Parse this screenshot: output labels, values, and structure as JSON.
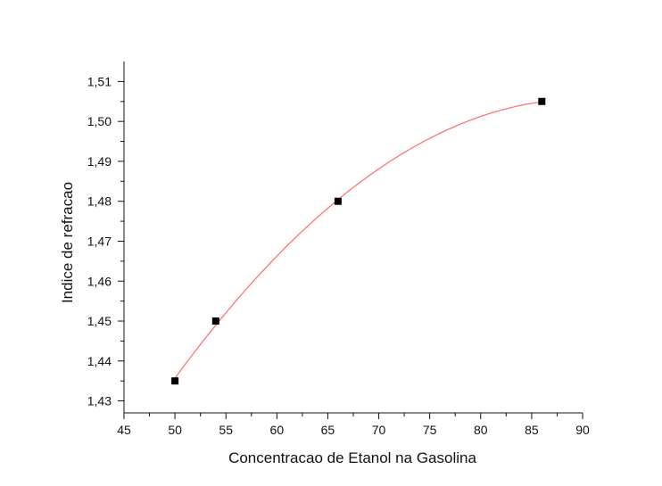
{
  "chart_data": {
    "type": "scatter",
    "title": "",
    "xlabel": "Concentracao de Etanol na Gasolina",
    "ylabel": "Indice de refracao",
    "xlim": [
      45,
      90
    ],
    "ylim": [
      1.427,
      1.515
    ],
    "xticks": [
      45,
      50,
      55,
      60,
      65,
      70,
      75,
      80,
      85,
      90
    ],
    "xtick_labels": [
      "45",
      "50",
      "55",
      "60",
      "65",
      "70",
      "75",
      "80",
      "85",
      "90"
    ],
    "yticks": [
      1.43,
      1.44,
      1.45,
      1.46,
      1.47,
      1.48,
      1.49,
      1.5,
      1.51
    ],
    "ytick_labels": [
      "1,43",
      "1,44",
      "1,45",
      "1,46",
      "1,47",
      "1,48",
      "1,49",
      "1,50",
      "1,51"
    ],
    "grid": false,
    "legend": "none",
    "series": [
      {
        "marker": "square",
        "color": "#000000",
        "x": [
          50,
          54,
          66,
          86
        ],
        "y": [
          1.435,
          1.45,
          1.48,
          1.505
        ]
      }
    ],
    "fit_curve": {
      "type": "polynomial",
      "color": "#ff6b6b",
      "x_range": [
        50,
        86
      ]
    }
  }
}
